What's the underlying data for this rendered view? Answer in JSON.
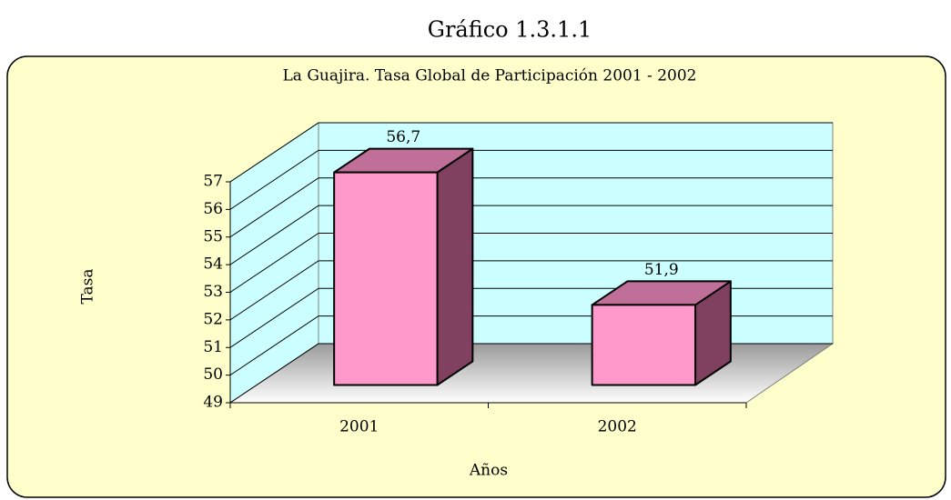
{
  "heading": "Gráfico 1.3.1.1",
  "chart_data": {
    "type": "bar3d",
    "title": "La Guajira. Tasa Global de Participación 2001 - 2002",
    "xlabel": "Años",
    "ylabel": "Tasa",
    "categories": [
      "2001",
      "2002"
    ],
    "values": [
      56.7,
      51.9
    ],
    "value_labels": [
      "56,7",
      "51,9"
    ],
    "color": "#ff99cc",
    "ylim": [
      49,
      57
    ],
    "yticks": [
      49,
      50,
      51,
      52,
      53,
      54,
      55,
      56,
      57
    ],
    "grid": true
  }
}
